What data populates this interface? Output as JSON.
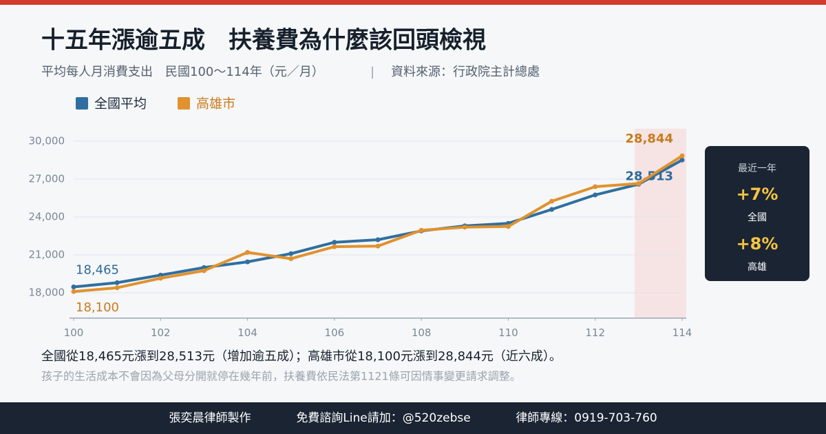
{
  "header": {
    "title": "十五年漲逾五成　扶養費為什麼該回頭檢視",
    "subtitle": "平均每人月消費支出　民國100～114年（元／月）",
    "source": "資料來源：行政院主計總處"
  },
  "chart_data": {
    "type": "line",
    "x": [
      100,
      101,
      102,
      103,
      104,
      105,
      106,
      107,
      108,
      109,
      110,
      111,
      112,
      113,
      114
    ],
    "series": [
      {
        "name": "全國平均",
        "color": "#2f6f9f",
        "values": [
          18465,
          18800,
          19400,
          20000,
          20450,
          21100,
          22000,
          22200,
          22900,
          23300,
          23500,
          24600,
          25750,
          26600,
          28513
        ],
        "value_labels": [
          "18,465",
          null,
          null,
          null,
          null,
          null,
          null,
          null,
          null,
          null,
          null,
          null,
          null,
          null,
          "28,513"
        ]
      },
      {
        "name": "高雄市",
        "color": "#e0922e",
        "values": [
          18100,
          18400,
          19150,
          19750,
          21200,
          20700,
          21650,
          21700,
          22950,
          23200,
          23250,
          25250,
          26400,
          26650,
          28844
        ],
        "value_labels": [
          "18,100",
          null,
          null,
          null,
          null,
          null,
          null,
          null,
          null,
          null,
          null,
          null,
          null,
          null,
          "28,844"
        ]
      }
    ],
    "xlim": [
      100,
      114
    ],
    "xticks": [
      100,
      102,
      104,
      106,
      108,
      110,
      112,
      114
    ],
    "ylim": [
      16000,
      31000
    ],
    "yticks": [
      {
        "value": 18000,
        "label": "18,000"
      },
      {
        "value": 21000,
        "label": "21,000"
      },
      {
        "value": 24000,
        "label": "24,000"
      },
      {
        "value": 27000,
        "label": "27,000"
      },
      {
        "value": 30000,
        "label": "30,000"
      }
    ],
    "grid": true,
    "highlight_x": [
      113,
      114
    ],
    "legend": "top-left"
  },
  "side_panel": {
    "heading": "最近一年",
    "items": [
      {
        "value": "+7%",
        "label": "全國"
      },
      {
        "value": "+8%",
        "label": "高雄"
      }
    ]
  },
  "summary": "全國從18,465元漲到28,513元（增加逾五成）；高雄市從18,100元漲到28,844元（近六成）。",
  "note": "孩子的生活成本不會因為父母分開就停在幾年前，扶養費依民法第1121條可因情事變更請求調整。",
  "footer": [
    "張奕晨律師製作",
    "免費諮詢Line請加：@520zebse",
    "律師專線：0919-703-760"
  ]
}
